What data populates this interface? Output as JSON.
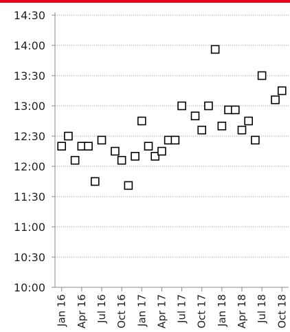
{
  "accent_color": "#e8001c",
  "chart_data": {
    "type": "scatter",
    "title": "",
    "xlabel": "",
    "ylabel": "",
    "y_unit": "time (hh:mm)",
    "ylim": [
      "10:00",
      "14:30"
    ],
    "y_ticks": [
      "10:00",
      "10:30",
      "11:00",
      "11:30",
      "12:00",
      "12:30",
      "13:00",
      "13:30",
      "14:00",
      "14:30"
    ],
    "x_range": [
      "2015-12",
      "2018-11"
    ],
    "x_ticks": [
      "Jan 16",
      "Apr 16",
      "Jul 16",
      "Oct 16",
      "Jan 17",
      "Apr 17",
      "Jul 17",
      "Oct 17",
      "Jan 18",
      "Apr 18",
      "Jul 18",
      "Oct 18"
    ],
    "x_tick_dates": [
      "2016-01",
      "2016-04",
      "2016-07",
      "2016-10",
      "2017-01",
      "2017-04",
      "2017-07",
      "2017-10",
      "2018-01",
      "2018-04",
      "2018-07",
      "2018-10"
    ],
    "grid": {
      "horizontal": true,
      "style": "dotted",
      "vertical": false
    },
    "marker": "open-square",
    "series": [
      {
        "points": [
          {
            "x": "2016-01",
            "y": "12:20"
          },
          {
            "x": "2016-02",
            "y": "12:30"
          },
          {
            "x": "2016-03",
            "y": "12:06"
          },
          {
            "x": "2016-04",
            "y": "12:20"
          },
          {
            "x": "2016-05",
            "y": "12:20"
          },
          {
            "x": "2016-06",
            "y": "11:45"
          },
          {
            "x": "2016-07",
            "y": "12:26"
          },
          {
            "x": "2016-09",
            "y": "12:15"
          },
          {
            "x": "2016-10",
            "y": "12:06"
          },
          {
            "x": "2016-11",
            "y": "11:41"
          },
          {
            "x": "2016-12",
            "y": "12:10"
          },
          {
            "x": "2017-01",
            "y": "12:45"
          },
          {
            "x": "2017-02",
            "y": "12:20"
          },
          {
            "x": "2017-03",
            "y": "12:10"
          },
          {
            "x": "2017-04",
            "y": "12:15"
          },
          {
            "x": "2017-05",
            "y": "12:26"
          },
          {
            "x": "2017-06",
            "y": "12:26"
          },
          {
            "x": "2017-07",
            "y": "13:00"
          },
          {
            "x": "2017-09",
            "y": "12:50"
          },
          {
            "x": "2017-10",
            "y": "12:36"
          },
          {
            "x": "2017-11",
            "y": "13:00"
          },
          {
            "x": "2017-12",
            "y": "13:56"
          },
          {
            "x": "2018-01",
            "y": "12:40"
          },
          {
            "x": "2018-02",
            "y": "12:56"
          },
          {
            "x": "2018-03",
            "y": "12:56"
          },
          {
            "x": "2018-04",
            "y": "12:36"
          },
          {
            "x": "2018-05",
            "y": "12:45"
          },
          {
            "x": "2018-06",
            "y": "12:26"
          },
          {
            "x": "2018-07",
            "y": "13:30"
          },
          {
            "x": "2018-09",
            "y": "13:06"
          },
          {
            "x": "2018-10",
            "y": "13:15"
          }
        ]
      }
    ]
  }
}
